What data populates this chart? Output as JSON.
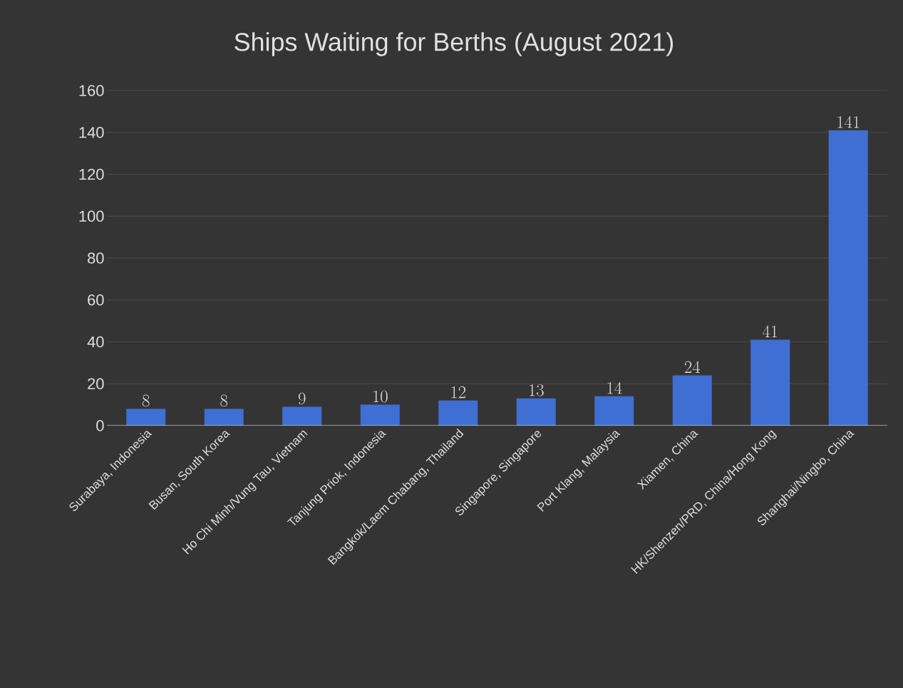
{
  "chart_data": {
    "type": "bar",
    "title": "Ships Waiting for Berths (August 2021)",
    "categories": [
      "Surabaya, Indonesia",
      "Busan, South Korea",
      "Ho Chi Minh/Vung Tau, Vietnam",
      "Tanjung Priok, Indonesia",
      "Bangkok/Laem Chabang, Thailand",
      "Singapore, Singapore",
      "Port Klang, Malaysia",
      "Xiamen, China",
      "HK/Shenzen/PRD, China/Hong Kong",
      "Shanghai/Ningbo, China"
    ],
    "values": [
      8,
      8,
      9,
      10,
      12,
      13,
      14,
      24,
      41,
      141
    ],
    "color": "#3f6fd2",
    "ylim": [
      0,
      160
    ],
    "yticks": [
      0,
      20,
      40,
      60,
      80,
      100,
      120,
      140,
      160
    ],
    "grid": "y",
    "data_labels": true
  }
}
